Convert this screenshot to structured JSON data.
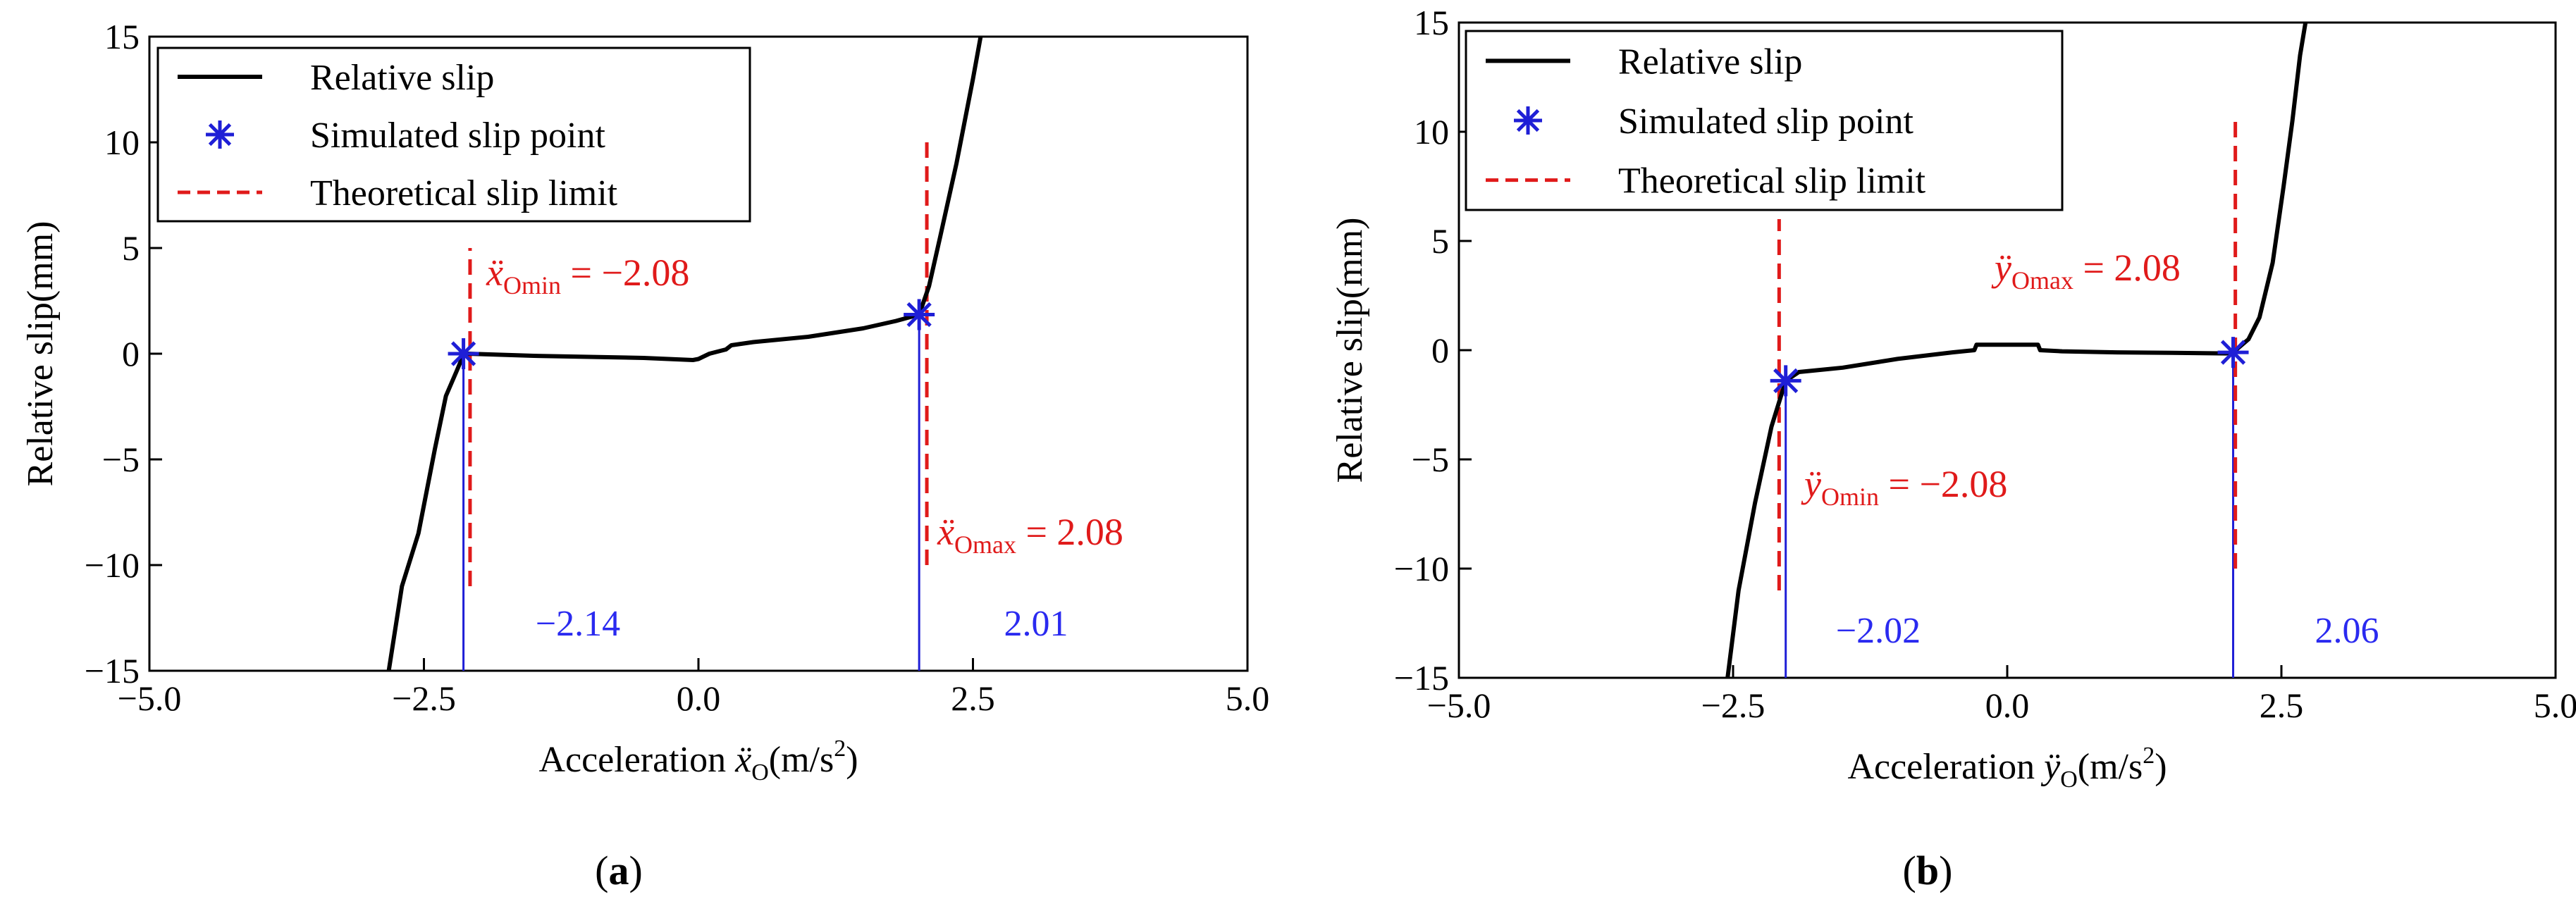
{
  "colors": {
    "curve": "#000000",
    "marker": "#1f1fd6",
    "limit": "#e01a1a",
    "annotation_blue": "#2a2af0",
    "axis": "#000000"
  },
  "chart_data": [
    {
      "type": "line",
      "panel_label": "a",
      "xlim": [
        -5.0,
        5.0
      ],
      "ylim": [
        -15,
        15
      ],
      "xticks": [
        -5.0,
        -2.5,
        0.0,
        2.5,
        5.0
      ],
      "xtick_labels": [
        "−5.0",
        "−2.5",
        "0.0",
        "2.5",
        "5.0"
      ],
      "yticks": [
        -15,
        -10,
        -5,
        0,
        5,
        10,
        15
      ],
      "ytick_labels": [
        "−15",
        "−10",
        "−5",
        "0",
        "5",
        "10",
        "15"
      ],
      "xlabel": {
        "prefix": "Acceleration ",
        "var": "ẍ",
        "sub": "O",
        "unit": "(m/s",
        "sup": "2",
        "close": ")"
      },
      "ylabel": "Relative slip(mm)",
      "legend": {
        "position": "top-left",
        "entries": [
          "Relative slip",
          "Simulated slip point",
          "Theoretical slip limit"
        ]
      },
      "series": [
        {
          "name": "Relative slip",
          "x": [
            -2.82,
            -2.7,
            -2.55,
            -2.4,
            -2.3,
            -2.2,
            -2.14,
            -2.1,
            -1.5,
            -0.5,
            -0.05,
            0.0,
            0.1,
            0.25,
            0.3,
            0.5,
            1.0,
            1.5,
            1.8,
            2.01,
            2.1,
            2.2,
            2.35,
            2.5,
            2.57
          ],
          "y": [
            -15,
            -11.0,
            -8.5,
            -4.5,
            -2.0,
            -0.8,
            -0.05,
            0.0,
            -0.1,
            -0.2,
            -0.3,
            -0.25,
            0.0,
            0.2,
            0.4,
            0.55,
            0.8,
            1.2,
            1.55,
            1.85,
            3.2,
            5.5,
            9.0,
            13.0,
            15.0
          ]
        }
      ],
      "slip_points": [
        {
          "x": -2.14,
          "y": 0.0
        },
        {
          "x": 2.01,
          "y": 1.85
        }
      ],
      "limit_lines": [
        {
          "x": -2.08,
          "y_from": -11,
          "y_to": 5,
          "label": {
            "var": "ẍ",
            "sub": "Omin",
            "text": " = −2.08"
          }
        },
        {
          "x": 2.08,
          "y_from": -10,
          "y_to": 10,
          "label": {
            "var": "ẍ",
            "sub": "Omax",
            "text": " = 2.08"
          }
        }
      ],
      "value_lines": [
        {
          "x": -2.14,
          "y_from": -15,
          "y_to": 0.0,
          "label": "−2.14"
        },
        {
          "x": 2.01,
          "y_from": -15,
          "y_to": 1.85,
          "label": "2.01"
        }
      ]
    },
    {
      "type": "line",
      "panel_label": "b",
      "xlim": [
        -5.0,
        5.0
      ],
      "ylim": [
        -15,
        15
      ],
      "xticks": [
        -5.0,
        -2.5,
        0.0,
        2.5,
        5.0
      ],
      "xtick_labels": [
        "−5.0",
        "−2.5",
        "0.0",
        "2.5",
        "5.0"
      ],
      "yticks": [
        -15,
        -10,
        -5,
        0,
        5,
        10,
        15
      ],
      "ytick_labels": [
        "−15",
        "−10",
        "−5",
        "0",
        "5",
        "10",
        "15"
      ],
      "xlabel": {
        "prefix": "Acceleration ",
        "var": "ÿ",
        "sub": "O",
        "unit": "(m/s",
        "sup": "2",
        "close": ")"
      },
      "ylabel": "Relative slip(mm)",
      "legend": {
        "position": "top-left",
        "entries": [
          "Relative slip",
          "Simulated slip point",
          "Theoretical slip limit"
        ]
      },
      "series": [
        {
          "name": "Relative slip",
          "x": [
            -2.55,
            -2.45,
            -2.3,
            -2.15,
            -2.02,
            -1.9,
            -1.5,
            -1.0,
            -0.5,
            -0.3,
            -0.28,
            0.28,
            0.3,
            0.5,
            1.0,
            1.5,
            2.0,
            2.06,
            2.2,
            2.3,
            2.42,
            2.52,
            2.6,
            2.67,
            2.72
          ],
          "y": [
            -15,
            -11.0,
            -7.0,
            -3.5,
            -1.4,
            -1.0,
            -0.8,
            -0.4,
            -0.1,
            0.0,
            0.25,
            0.25,
            0.0,
            -0.05,
            -0.1,
            -0.12,
            -0.15,
            -0.1,
            0.5,
            1.5,
            4.0,
            7.5,
            10.5,
            13.5,
            15.0
          ]
        }
      ],
      "slip_points": [
        {
          "x": -2.02,
          "y": -1.4
        },
        {
          "x": 2.06,
          "y": -0.1
        }
      ],
      "limit_lines": [
        {
          "x": -2.08,
          "y_from": -11,
          "y_to": 6,
          "label": {
            "var": "ÿ",
            "sub": "Omin",
            "text": " = −2.08"
          }
        },
        {
          "x": 2.08,
          "y_from": -10,
          "y_to": 10.5,
          "label": {
            "var": "ÿ",
            "sub": "Omax",
            "text": " = 2.08"
          }
        }
      ],
      "value_lines": [
        {
          "x": -2.02,
          "y_from": -15,
          "y_to": -1.4,
          "label": "−2.02"
        },
        {
          "x": 2.06,
          "y_from": -15,
          "y_to": -0.1,
          "label": "2.06"
        }
      ]
    }
  ]
}
